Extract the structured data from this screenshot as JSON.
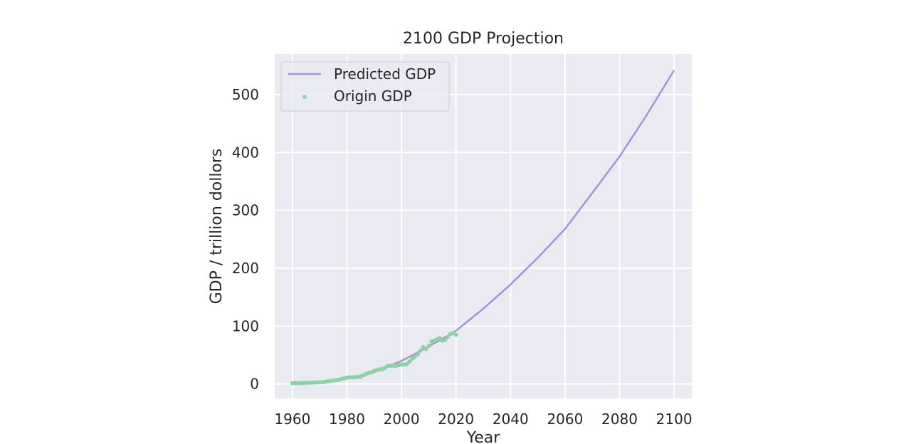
{
  "chart_data": {
    "type": "line",
    "title": "2100 GDP Projection",
    "xlabel": "Year",
    "ylabel": "GDP / trillion dollors",
    "xlim": [
      1953.5,
      2106.5
    ],
    "ylim": [
      -25,
      570
    ],
    "xticks": [
      1960,
      1980,
      2000,
      2020,
      2040,
      2060,
      2080,
      2100
    ],
    "yticks": [
      0,
      100,
      200,
      300,
      400,
      500
    ],
    "grid": true,
    "legend_position": "top-left",
    "colors": {
      "predicted": "#a493d6",
      "origin": "#8fd0a8",
      "plot_bg": "#eaeaf2"
    },
    "series": [
      {
        "name": "Predicted GDP",
        "type": "line",
        "x": [
          1995,
          2000,
          2005,
          2010,
          2015,
          2020,
          2030,
          2040,
          2050,
          2060,
          2070,
          2080,
          2090,
          2100
        ],
        "values": [
          30,
          40,
          52,
          65,
          78,
          92,
          130,
          172,
          218,
          268,
          330,
          393,
          465,
          542
        ]
      },
      {
        "name": "Origin GDP",
        "type": "scatter",
        "x": [
          1960,
          1961,
          1962,
          1963,
          1964,
          1965,
          1966,
          1967,
          1968,
          1969,
          1970,
          1971,
          1972,
          1973,
          1974,
          1975,
          1976,
          1977,
          1978,
          1979,
          1980,
          1981,
          1982,
          1983,
          1984,
          1985,
          1986,
          1987,
          1988,
          1989,
          1990,
          1991,
          1992,
          1993,
          1994,
          1995,
          1996,
          1997,
          1998,
          1999,
          2000,
          2001,
          2002,
          2003,
          2004,
          2005,
          2006,
          2007,
          2008,
          2009,
          2010,
          2011,
          2012,
          2013,
          2014,
          2015,
          2016,
          2017,
          2018,
          2019,
          2020
        ],
        "values": [
          1.4,
          1.5,
          1.6,
          1.7,
          1.9,
          2.0,
          2.2,
          2.3,
          2.5,
          2.7,
          3.0,
          3.3,
          3.8,
          4.6,
          5.4,
          6.0,
          6.5,
          7.3,
          8.6,
          10.0,
          11.2,
          11.6,
          11.5,
          11.7,
          12.2,
          12.8,
          15.0,
          17.1,
          19.2,
          20.1,
          22.6,
          23.9,
          25.4,
          25.9,
          27.7,
          31.0,
          31.6,
          31.5,
          31.4,
          32.6,
          33.6,
          33.4,
          34.7,
          38.9,
          43.8,
          47.4,
          51.4,
          57.9,
          63.6,
          60.3,
          66.0,
          73.3,
          75.0,
          77.2,
          79.3,
          75.0,
          76.3,
          81.3,
          86.4,
          87.7,
          84.9
        ]
      }
    ]
  }
}
